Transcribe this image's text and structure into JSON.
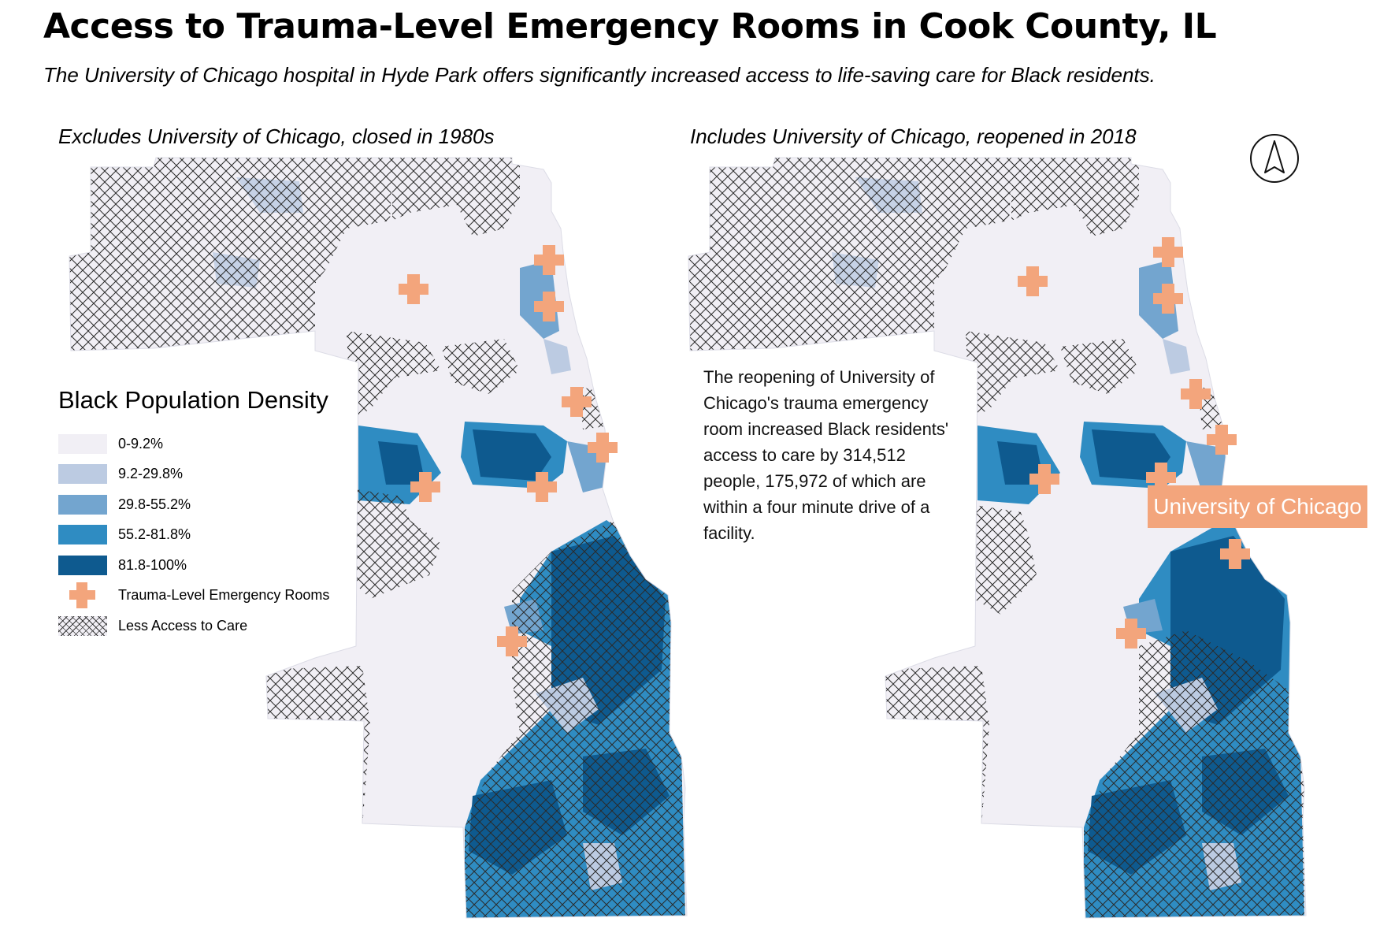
{
  "title": "Access to Trauma-Level Emergency Rooms in Cook County, IL",
  "subtitle": "The University of Chicago hospital in Hyde Park offers significantly increased access to life-saving care for Black residents.",
  "maps": {
    "left": {
      "label": "Excludes University of Chicago, closed in 1980s"
    },
    "right": {
      "label": "Includes University of Chicago, reopened in 2018"
    }
  },
  "legend": {
    "title": "Black Population Density",
    "classes": [
      {
        "label": "0-9.2%",
        "color": "#f1eff5"
      },
      {
        "label": "9.2-29.8%",
        "color": "#bccbe2"
      },
      {
        "label": "29.8-55.2%",
        "color": "#73a5cf"
      },
      {
        "label": "55.2-81.8%",
        "color": "#2f8cc2"
      },
      {
        "label": "81.8-100%",
        "color": "#0e5a8f"
      }
    ],
    "er_label": "Trauma-Level Emergency Rooms",
    "er_color": "#f3a57c",
    "hatch_label": "Less Access to Care"
  },
  "annotation": "The reopening of University of Chicago's trauma emergency room increased Black residents' access to care by 314,512 people, 175,972 of which are within a four minute drive of a facility.",
  "callout": {
    "label": "University of Chicago",
    "color": "#f3a57c"
  },
  "north_arrow": {
    "icon": "north-arrow-icon"
  }
}
